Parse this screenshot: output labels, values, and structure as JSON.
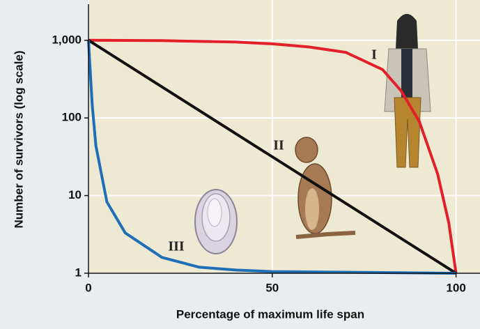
{
  "chart_data": {
    "type": "line",
    "x_label": "Percentage of maximum life span",
    "y_label": "Number of survivors (log scale)",
    "xlim": [
      0,
      105
    ],
    "ylim": [
      1,
      2800
    ],
    "log_y": true,
    "grid": true,
    "xticks": [
      0,
      50,
      100
    ],
    "yticks": [
      1,
      10,
      100,
      {
        "value": 1000,
        "label": "1,000"
      }
    ],
    "series": [
      {
        "name": "I",
        "color": "#e3202a",
        "x": [
          0,
          20,
          40,
          50,
          60,
          70,
          80,
          85,
          90,
          95,
          98,
          100
        ],
        "values": [
          1000,
          990,
          950,
          900,
          820,
          700,
          420,
          225,
          90,
          19,
          4.5,
          1
        ]
      },
      {
        "name": "II",
        "color": "#111111",
        "x": [
          0,
          100
        ],
        "values": [
          1000,
          1
        ]
      },
      {
        "name": "III",
        "color": "#1f6fb8",
        "x": [
          0,
          1,
          2,
          5,
          10,
          20,
          30,
          40,
          50,
          100
        ],
        "values": [
          1000,
          150,
          44,
          8.3,
          3.3,
          1.6,
          1.2,
          1.1,
          1.05,
          1
        ]
      }
    ]
  }
}
